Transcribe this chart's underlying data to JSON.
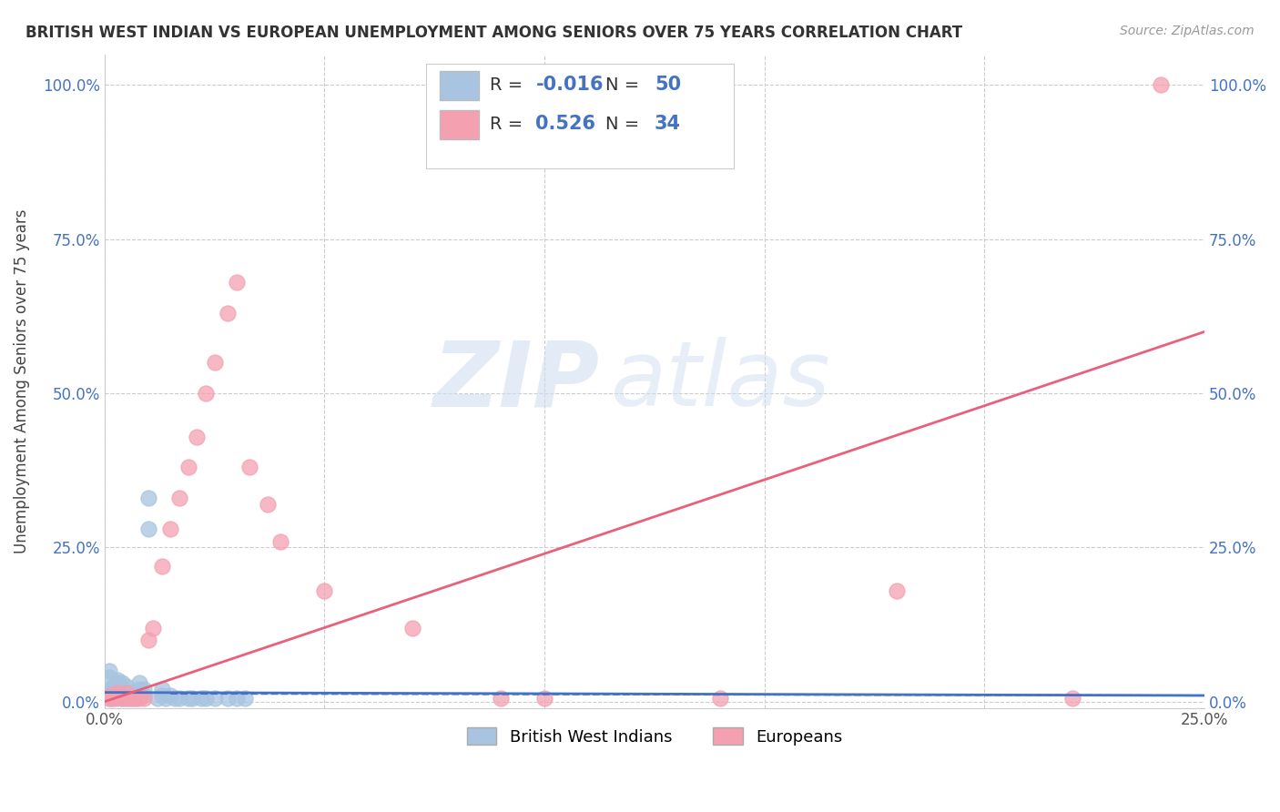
{
  "title": "BRITISH WEST INDIAN VS EUROPEAN UNEMPLOYMENT AMONG SENIORS OVER 75 YEARS CORRELATION CHART",
  "source": "Source: ZipAtlas.com",
  "ylabel": "Unemployment Among Seniors over 75 years",
  "xlim": [
    0.0,
    0.25
  ],
  "ylim": [
    -0.01,
    1.05
  ],
  "xticks": [
    0.0,
    0.05,
    0.1,
    0.15,
    0.2,
    0.25
  ],
  "yticks": [
    0.0,
    0.25,
    0.5,
    0.75,
    1.0
  ],
  "xticklabels": [
    "0.0%",
    "",
    "",
    "",
    "",
    "25.0%"
  ],
  "yticklabels": [
    "0.0%",
    "25.0%",
    "50.0%",
    "75.0%",
    "100.0%"
  ],
  "bwi_color": "#a8c4e0",
  "eur_color": "#f4a0b0",
  "bwi_line_color": "#4472c4",
  "eur_line_color": "#e8607a",
  "R_bwi": -0.016,
  "N_bwi": 50,
  "R_eur": 0.526,
  "N_eur": 34,
  "watermark_zip": "ZIP",
  "watermark_atlas": "atlas",
  "legend_label_bwi": "British West Indians",
  "legend_label_eur": "Europeans",
  "bwi_x": [
    0.001,
    0.001,
    0.001,
    0.002,
    0.002,
    0.002,
    0.002,
    0.002,
    0.003,
    0.003,
    0.003,
    0.003,
    0.003,
    0.003,
    0.003,
    0.004,
    0.004,
    0.004,
    0.004,
    0.005,
    0.005,
    0.005,
    0.006,
    0.006,
    0.007,
    0.007,
    0.008,
    0.008,
    0.008,
    0.009,
    0.009,
    0.01,
    0.01,
    0.012,
    0.013,
    0.013,
    0.014,
    0.015,
    0.016,
    0.017,
    0.019,
    0.02,
    0.022,
    0.023,
    0.025,
    0.028,
    0.03,
    0.032,
    0.001,
    0.001
  ],
  "bwi_y": [
    0.005,
    0.01,
    0.015,
    0.005,
    0.01,
    0.015,
    0.02,
    0.025,
    0.005,
    0.01,
    0.015,
    0.02,
    0.025,
    0.03,
    0.035,
    0.005,
    0.01,
    0.02,
    0.03,
    0.005,
    0.015,
    0.025,
    0.005,
    0.015,
    0.005,
    0.015,
    0.01,
    0.02,
    0.03,
    0.01,
    0.02,
    0.28,
    0.33,
    0.005,
    0.01,
    0.02,
    0.005,
    0.01,
    0.005,
    0.005,
    0.005,
    0.005,
    0.005,
    0.005,
    0.005,
    0.005,
    0.005,
    0.005,
    0.04,
    0.05
  ],
  "eur_x": [
    0.001,
    0.001,
    0.002,
    0.003,
    0.003,
    0.004,
    0.005,
    0.005,
    0.006,
    0.007,
    0.008,
    0.009,
    0.01,
    0.011,
    0.013,
    0.015,
    0.017,
    0.019,
    0.021,
    0.023,
    0.025,
    0.028,
    0.03,
    0.033,
    0.037,
    0.04,
    0.05,
    0.07,
    0.09,
    0.1,
    0.14,
    0.18,
    0.22,
    0.24
  ],
  "eur_y": [
    0.005,
    0.01,
    0.005,
    0.01,
    0.015,
    0.005,
    0.005,
    0.015,
    0.005,
    0.005,
    0.005,
    0.005,
    0.1,
    0.12,
    0.22,
    0.28,
    0.33,
    0.38,
    0.43,
    0.5,
    0.55,
    0.63,
    0.68,
    0.38,
    0.32,
    0.26,
    0.18,
    0.12,
    0.005,
    0.005,
    0.005,
    0.18,
    0.005,
    1.0
  ]
}
